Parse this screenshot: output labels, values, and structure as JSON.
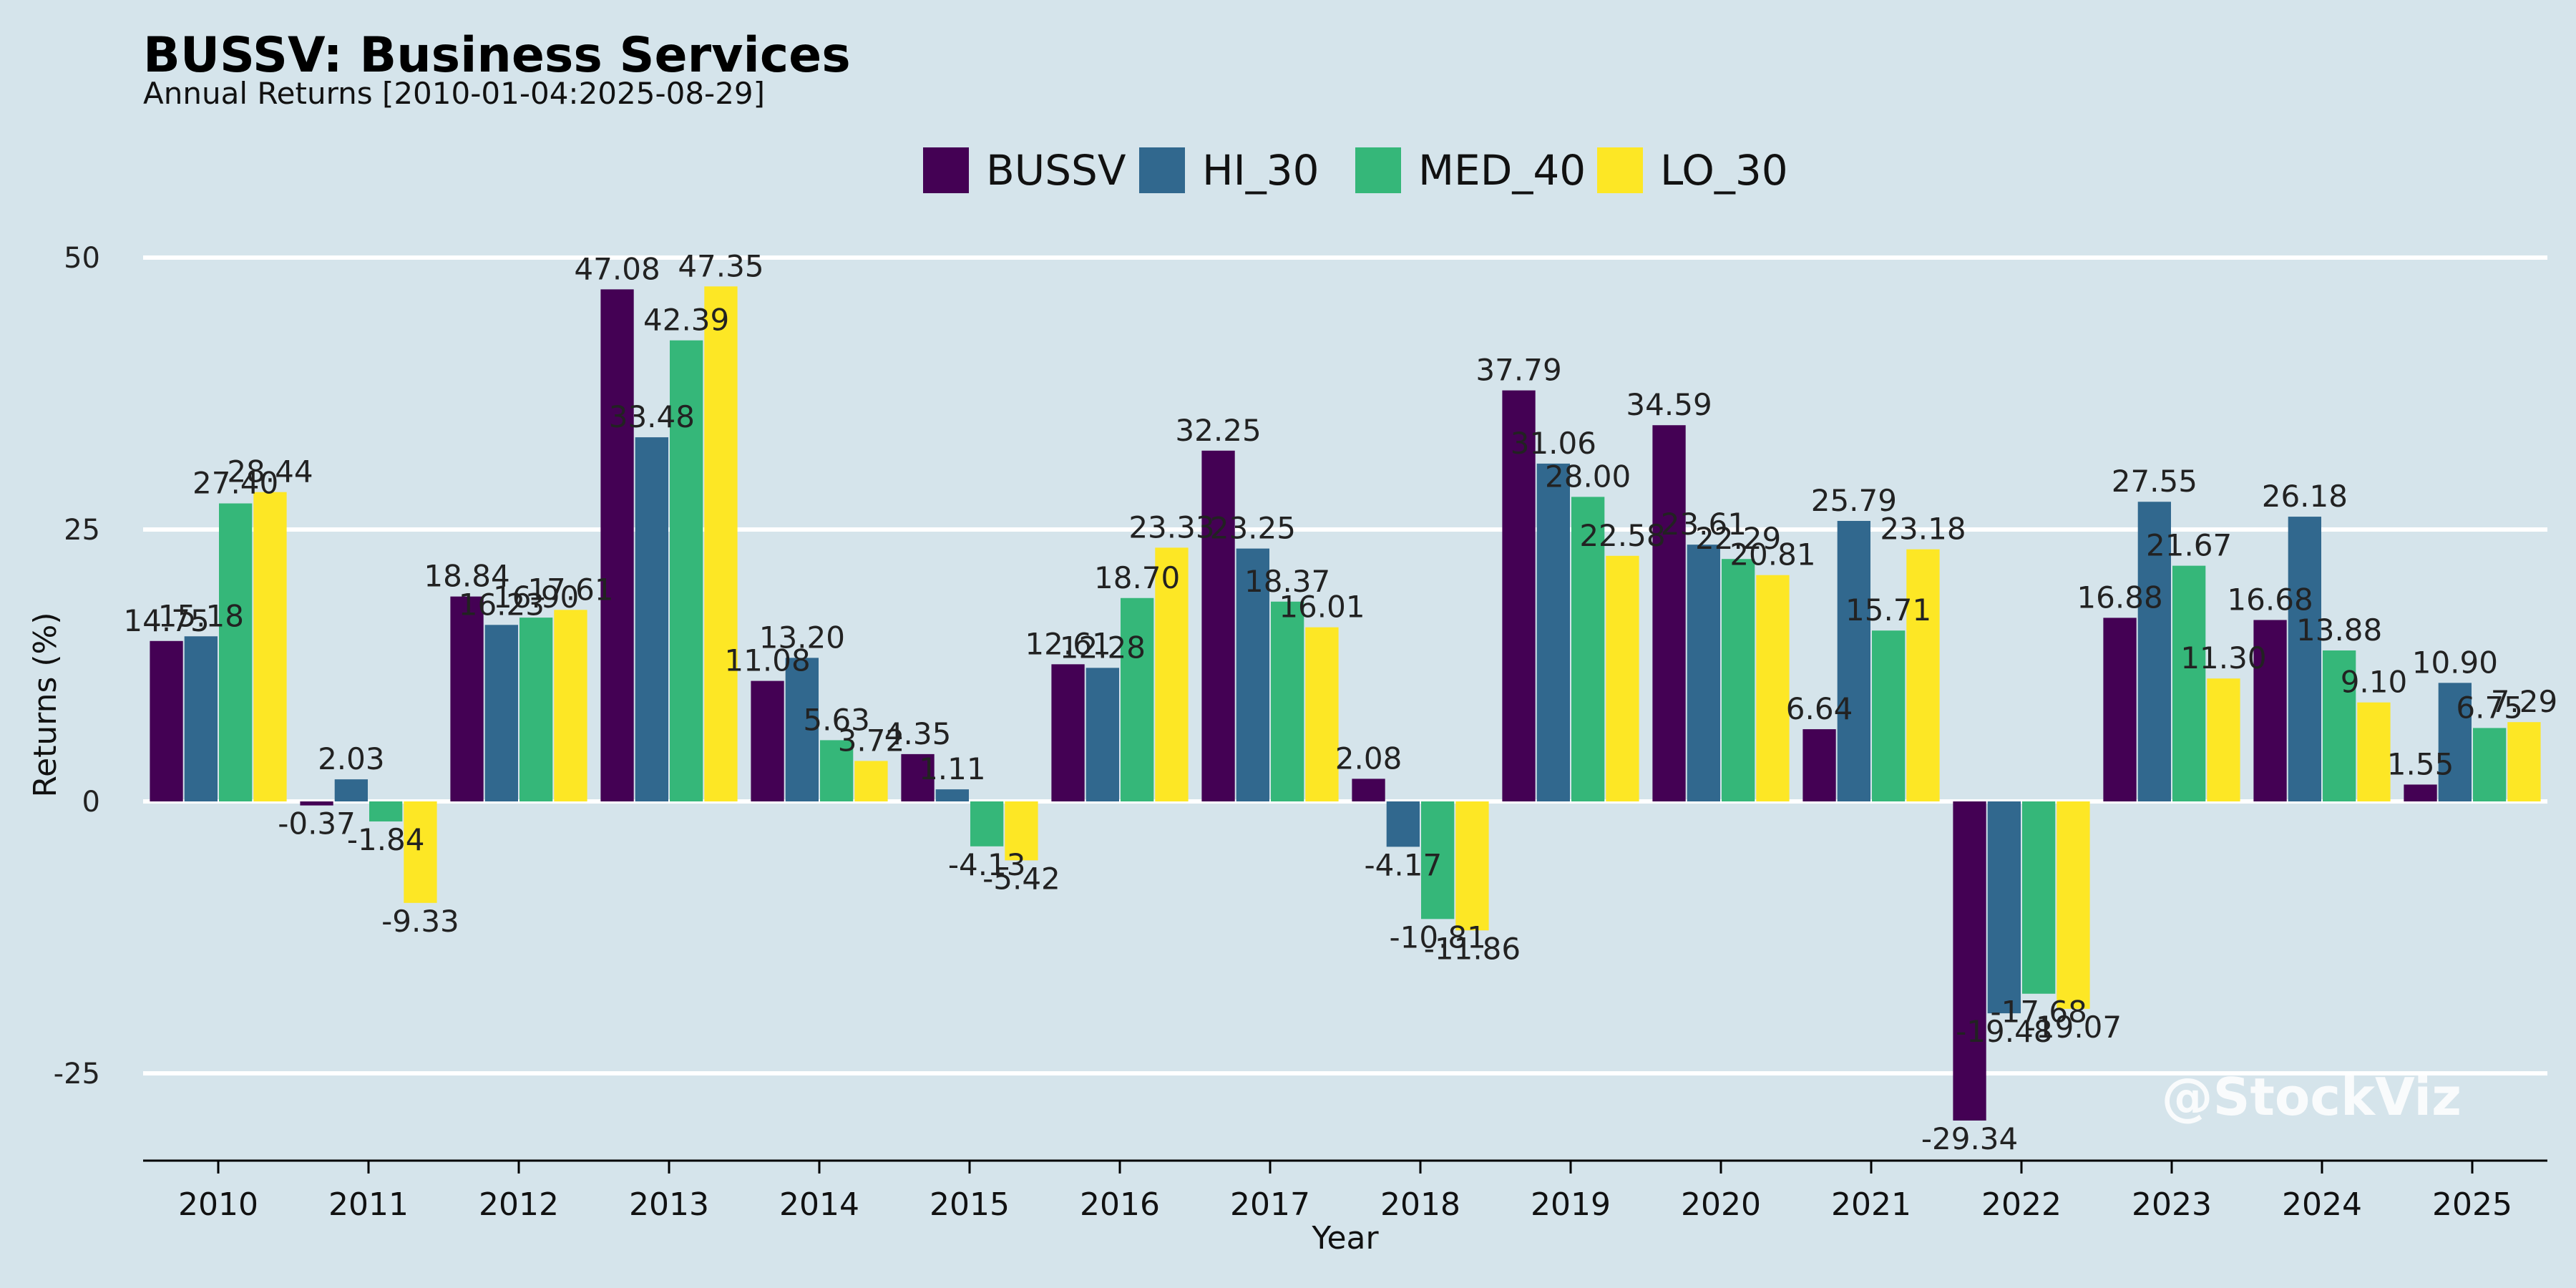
{
  "header": {
    "title": "BUSSV: Business Services",
    "subtitle": "Annual Returns [2010-01-04:2025-08-29]"
  },
  "watermark": "@StockViz",
  "chart_data": {
    "type": "bar",
    "xlabel": "Year",
    "ylabel": "Returns (%)",
    "ylim": [
      -33,
      55
    ],
    "yticks": [
      -25,
      0,
      25,
      50
    ],
    "grid": "horizontal",
    "legend_position": "top-center",
    "categories": [
      "2010",
      "2011",
      "2012",
      "2013",
      "2014",
      "2015",
      "2016",
      "2017",
      "2018",
      "2019",
      "2020",
      "2021",
      "2022",
      "2023",
      "2024",
      "2025"
    ],
    "series": [
      {
        "name": "BUSSV",
        "color": "#440154",
        "values": [
          14.75,
          -0.37,
          18.84,
          47.08,
          11.08,
          4.35,
          12.61,
          32.25,
          2.08,
          37.79,
          34.59,
          6.64,
          -29.34,
          16.88,
          16.68,
          1.55
        ],
        "labels": [
          "14.75",
          "-0.37",
          "18.84",
          "47.08",
          "11.08",
          "4.35",
          "12.61",
          "32.25",
          "2.08",
          "37.79",
          "34.59",
          "6.64",
          "-29.34",
          "16.88",
          "16.68",
          "1.55"
        ]
      },
      {
        "name": "HI_30",
        "color": "#31688e",
        "values": [
          15.18,
          2.03,
          16.23,
          33.48,
          13.2,
          1.11,
          12.28,
          23.25,
          -4.17,
          31.06,
          23.61,
          25.79,
          -19.48,
          27.55,
          26.18,
          10.9
        ],
        "labels": [
          "15.18",
          "2.03",
          "16.23",
          "33.48",
          "13.20",
          "1.11",
          "12.28",
          "23.25",
          "-4.17",
          "31.06",
          "23.61",
          "25.79",
          "-19.48",
          "27.55",
          "26.18",
          "10.90"
        ]
      },
      {
        "name": "MED_40",
        "color": "#35b779",
        "values": [
          27.4,
          -1.84,
          16.9,
          42.39,
          5.63,
          -4.13,
          18.7,
          18.37,
          -10.81,
          28.0,
          22.29,
          15.71,
          -17.68,
          21.67,
          13.88,
          6.75
        ],
        "labels": [
          "27.40",
          "-1.84",
          "16.90",
          "42.39",
          "5.63",
          "-4.13",
          "18.70",
          "18.37",
          "-10.81",
          "28.00",
          "22.29",
          "15.71",
          "-17.68",
          "21.67",
          "13.88",
          "6.75"
        ]
      },
      {
        "name": "LO_30",
        "color": "#fde725",
        "values": [
          28.44,
          -9.33,
          17.61,
          47.35,
          3.72,
          -5.42,
          23.33,
          16.01,
          -11.86,
          22.58,
          20.81,
          23.18,
          -19.07,
          11.3,
          9.1,
          7.29
        ],
        "labels": [
          "28.44",
          "-9.33",
          "17.61",
          "47.35",
          "3.72",
          "-5.42",
          "23.33",
          "16.01",
          "-11.86",
          "22.58",
          "20.81",
          "23.18",
          "-19.07",
          "11.30",
          "9.10",
          "7.29"
        ]
      }
    ]
  }
}
